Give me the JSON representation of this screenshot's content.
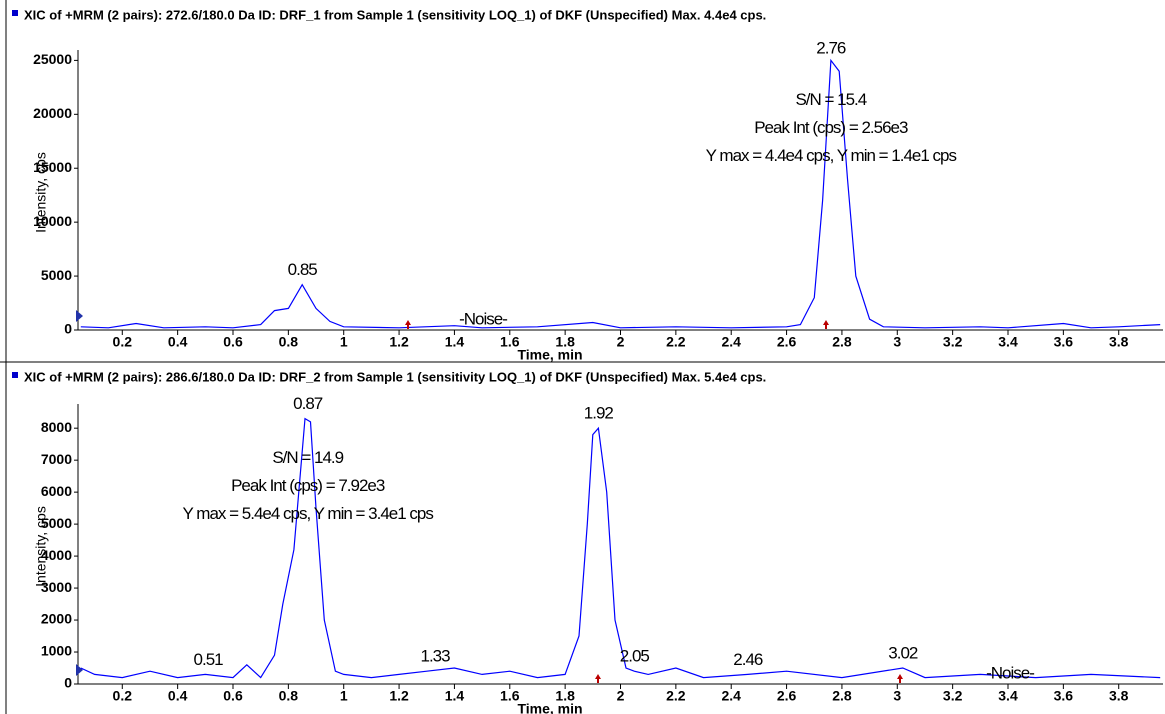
{
  "chart_data": [
    {
      "type": "line",
      "title": "XIC of +MRM (2 pairs): 272.6/180.0 Da ID: DRF_1 from Sample 1 (sensitivity LOQ_1) of DKF (Unspecified) Max. 4.4e4 cps.",
      "xlabel": "Time, min",
      "ylabel": "Intensity, cps",
      "xlim": [
        0.04,
        3.96
      ],
      "ylim": [
        0,
        25500
      ],
      "xticks": [
        0.2,
        0.4,
        0.6,
        0.8,
        1.0,
        1.2,
        1.4,
        1.6,
        1.8,
        2.0,
        2.2,
        2.4,
        2.6,
        2.8,
        3.0,
        3.2,
        3.4,
        3.6,
        3.8
      ],
      "yticks": [
        0,
        5000,
        10000,
        15000,
        20000,
        25000
      ],
      "series": [
        {
          "name": "XIC 1",
          "color": "#0000ff",
          "x": [
            0.05,
            0.15,
            0.25,
            0.35,
            0.5,
            0.6,
            0.7,
            0.75,
            0.8,
            0.85,
            0.9,
            0.95,
            1.0,
            1.2,
            1.4,
            1.5,
            1.7,
            1.9,
            2.0,
            2.2,
            2.4,
            2.6,
            2.65,
            2.7,
            2.73,
            2.76,
            2.79,
            2.82,
            2.85,
            2.9,
            2.95,
            3.1,
            3.3,
            3.4,
            3.6,
            3.7,
            3.8,
            3.95
          ],
          "values": [
            300,
            200,
            600,
            200,
            300,
            200,
            500,
            1800,
            2000,
            4200,
            2000,
            800,
            300,
            200,
            400,
            200,
            300,
            700,
            200,
            300,
            200,
            300,
            500,
            3000,
            12000,
            25000,
            24000,
            14000,
            5000,
            1000,
            300,
            200,
            300,
            200,
            600,
            200,
            300,
            500
          ]
        }
      ],
      "peak_labels": [
        {
          "label": "0.85",
          "x": 0.85
        },
        {
          "label": "2.76",
          "x": 2.76
        }
      ],
      "noise_label": "-Noise-",
      "annotations": [
        "S/N = 15.4",
        "Peak Int (cps) = 2.56e3",
        "Y max = 4.4e4 cps, Y min = 1.4e1 cps"
      ]
    },
    {
      "type": "line",
      "title": "XIC of +MRM (2 pairs): 286.6/180.0 Da ID: DRF_2 from Sample 1 (sensitivity LOQ_1) of DKF (Unspecified) Max. 5.4e4 cps.",
      "xlabel": "Time, min",
      "ylabel": "Intensity, cps",
      "xlim": [
        0.04,
        3.96
      ],
      "ylim": [
        0,
        8600
      ],
      "xticks": [
        0.2,
        0.4,
        0.6,
        0.8,
        1.0,
        1.2,
        1.4,
        1.6,
        1.8,
        2.0,
        2.2,
        2.4,
        2.6,
        2.8,
        3.0,
        3.2,
        3.4,
        3.6,
        3.8
      ],
      "yticks": [
        0,
        1000,
        2000,
        3000,
        4000,
        5000,
        6000,
        7000,
        8000
      ],
      "series": [
        {
          "name": "XIC 2",
          "color": "#0000ff",
          "x": [
            0.05,
            0.1,
            0.2,
            0.3,
            0.4,
            0.5,
            0.6,
            0.65,
            0.7,
            0.75,
            0.78,
            0.82,
            0.86,
            0.88,
            0.9,
            0.93,
            0.97,
            1.0,
            1.1,
            1.2,
            1.3,
            1.4,
            1.5,
            1.6,
            1.7,
            1.8,
            1.85,
            1.88,
            1.9,
            1.92,
            1.95,
            1.98,
            2.02,
            2.05,
            2.1,
            2.2,
            2.3,
            2.46,
            2.6,
            2.8,
            3.02,
            3.1,
            3.3,
            3.5,
            3.7,
            3.95
          ],
          "values": [
            500,
            300,
            200,
            400,
            200,
            300,
            200,
            600,
            200,
            900,
            2500,
            4200,
            8300,
            8200,
            5500,
            2000,
            400,
            300,
            200,
            300,
            400,
            500,
            300,
            400,
            200,
            300,
            1500,
            5000,
            7800,
            8000,
            6000,
            2000,
            500,
            400,
            300,
            500,
            200,
            300,
            400,
            200,
            500,
            200,
            300,
            200,
            300,
            200
          ]
        }
      ],
      "peak_labels": [
        {
          "label": "0.51",
          "x": 0.51
        },
        {
          "label": "0.87",
          "x": 0.87
        },
        {
          "label": "1.33",
          "x": 1.33
        },
        {
          "label": "1.92",
          "x": 1.92
        },
        {
          "label": "2.05",
          "x": 2.05
        },
        {
          "label": "2.46",
          "x": 2.46
        },
        {
          "label": "3.02",
          "x": 3.02
        }
      ],
      "noise_label": "-Noise-",
      "annotations": [
        "S/N = 14.9",
        "Peak Int (cps) = 7.92e3",
        "Y max = 5.4e4 cps, Y min = 3.4e1 cps"
      ]
    }
  ]
}
